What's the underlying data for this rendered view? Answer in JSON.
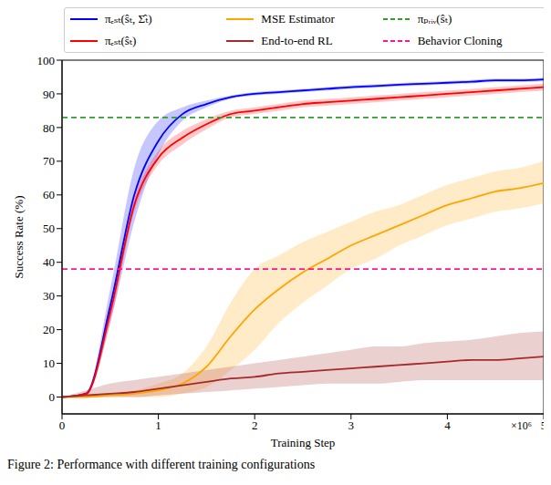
{
  "chart_data": {
    "type": "line",
    "title": "Figure 2: Performance with different training configurations",
    "x_label": "Training Step",
    "y_label": "Success Rate (%)",
    "annotations": [
      "×10⁶"
    ],
    "x": [
      0,
      0.25,
      0.5,
      0.75,
      1,
      1.25,
      1.5,
      1.75,
      2,
      2.25,
      2.5,
      2.75,
      3,
      3.25,
      3.5,
      3.75,
      4,
      4.25,
      4.5,
      4.75,
      5
    ],
    "xlim": [
      0,
      5
    ],
    "xticks": [
      0,
      1,
      2,
      3,
      4,
      5
    ],
    "ylim": [
      -5,
      100
    ],
    "yticks": [
      0,
      10,
      20,
      30,
      40,
      50,
      60,
      70,
      80,
      90,
      100
    ],
    "grid": false,
    "series": [
      {
        "name": "πₑₛₜ(ŝₜ, Σ̂ₜ)",
        "color": "#0000ff",
        "line_style": "solid",
        "values": [
          0,
          1,
          27,
          60,
          76,
          84,
          87,
          89,
          90,
          90.5,
          91,
          91.5,
          92,
          92.3,
          92.7,
          93,
          93.3,
          93.6,
          94,
          94,
          94.3
        ],
        "lower": [
          0,
          0.5,
          22,
          52,
          72,
          82,
          86,
          88.5,
          89.5,
          90,
          90.5,
          91,
          91.5,
          91.8,
          92.2,
          92.5,
          92.8,
          93.1,
          93.5,
          93.5,
          93.8
        ],
        "upper": [
          0,
          1.5,
          32,
          68,
          82,
          86,
          88,
          89.5,
          90.5,
          91,
          91.5,
          92,
          92.5,
          92.8,
          93.2,
          93.5,
          93.8,
          94.1,
          94.5,
          94.5,
          94.8
        ]
      },
      {
        "name": "πₑₛₜ(ŝₜ)",
        "color": "#ff0000",
        "line_style": "solid",
        "values": [
          0,
          1,
          25,
          57,
          71,
          77,
          81,
          84,
          85,
          86,
          87,
          87.5,
          88,
          88.5,
          89,
          89.5,
          90,
          90.5,
          91,
          91.5,
          92
        ],
        "lower": [
          0,
          0.5,
          22,
          55,
          69,
          75,
          79.5,
          83,
          84,
          85,
          86,
          86.5,
          87,
          87.5,
          88,
          88.5,
          89,
          89.5,
          90,
          90.5,
          91
        ],
        "upper": [
          0,
          1.5,
          28,
          59,
          73,
          79,
          82.5,
          85,
          86,
          87,
          88,
          88.5,
          89,
          89.5,
          90,
          90.5,
          91,
          91.5,
          92,
          92.5,
          93
        ]
      },
      {
        "name": "MSE Estimator",
        "color": "#ffa500",
        "line_style": "solid",
        "values": [
          0,
          0,
          0.5,
          1,
          2,
          4,
          9,
          18,
          26,
          32,
          37,
          41,
          45,
          48,
          51,
          54,
          57,
          59,
          61,
          62,
          63.5
        ],
        "lower": [
          0,
          0,
          0,
          0,
          0,
          1,
          3,
          8,
          14,
          22,
          28,
          33,
          38,
          41,
          45,
          48,
          51,
          53,
          55,
          56,
          57.5
        ],
        "upper": [
          0,
          0,
          1,
          2,
          4,
          7,
          15,
          28,
          38,
          42,
          46,
          49,
          52,
          55,
          57,
          60,
          63,
          65,
          67,
          68,
          70
        ]
      },
      {
        "name": "End-to-end RL",
        "color": "#a52a2a",
        "line_style": "solid",
        "values": [
          0,
          0.5,
          1,
          1.5,
          2.5,
          3.5,
          4.5,
          5.5,
          6,
          7,
          7.5,
          8,
          8.5,
          9,
          9.5,
          10,
          10.5,
          11,
          11,
          11.5,
          12
        ],
        "lower": [
          0,
          0,
          0,
          0,
          0.5,
          1,
          1.5,
          2,
          2.5,
          3,
          3.5,
          4,
          4,
          4,
          4.5,
          5,
          5,
          5,
          5,
          5,
          5
        ],
        "upper": [
          0,
          2,
          4,
          5,
          6,
          7,
          8,
          9,
          10,
          11,
          12,
          13,
          14,
          15,
          15,
          16,
          16.5,
          17,
          18,
          19,
          19.5
        ]
      },
      {
        "name": "πₚᵣᵢᵥ(ŝₜ)",
        "color": "#2ca02c",
        "line_style": "dashed",
        "values": [
          83,
          83,
          83,
          83,
          83,
          83,
          83,
          83,
          83,
          83,
          83,
          83,
          83,
          83,
          83,
          83,
          83,
          83,
          83,
          83,
          83
        ]
      },
      {
        "name": "Behavior Cloning",
        "color": "#ff1493",
        "line_style": "dashed",
        "values": [
          38,
          38,
          38,
          38,
          38,
          38,
          38,
          38,
          38,
          38,
          38,
          38,
          38,
          38,
          38,
          38,
          38,
          38,
          38,
          38,
          38
        ]
      }
    ]
  }
}
